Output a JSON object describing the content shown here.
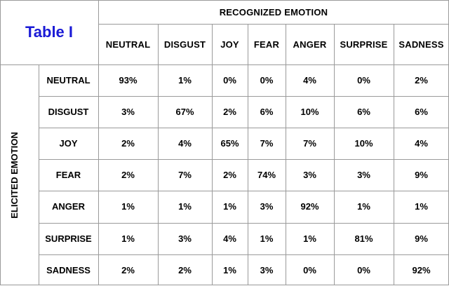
{
  "table": {
    "title": "Table I",
    "column_group_label": "RECOGNIZED EMOTION",
    "row_group_label": "ELICITED EMOTION",
    "columns": [
      "NEUTRAL",
      "DISGUST",
      "JOY",
      "FEAR",
      "ANGER",
      "SURPRISE",
      "SADNESS"
    ],
    "rows": [
      {
        "label": "NEUTRAL",
        "values": [
          "93%",
          "1%",
          "0%",
          "0%",
          "4%",
          "0%",
          "2%"
        ]
      },
      {
        "label": "DISGUST",
        "values": [
          "3%",
          "67%",
          "2%",
          "6%",
          "10%",
          "6%",
          "6%"
        ]
      },
      {
        "label": "JOY",
        "values": [
          "2%",
          "4%",
          "65%",
          "7%",
          "7%",
          "10%",
          "4%"
        ]
      },
      {
        "label": "FEAR",
        "values": [
          "2%",
          "7%",
          "2%",
          "74%",
          "3%",
          "3%",
          "9%"
        ]
      },
      {
        "label": "ANGER",
        "values": [
          "1%",
          "1%",
          "1%",
          "3%",
          "92%",
          "1%",
          "1%"
        ]
      },
      {
        "label": "SURPRISE",
        "values": [
          "1%",
          "3%",
          "4%",
          "1%",
          "1%",
          "81%",
          "9%"
        ]
      },
      {
        "label": "SADNESS",
        "values": [
          "2%",
          "2%",
          "1%",
          "3%",
          "0%",
          "0%",
          "92%"
        ]
      }
    ]
  }
}
